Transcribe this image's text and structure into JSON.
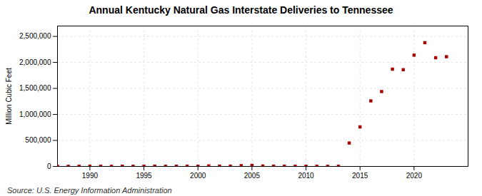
{
  "chart_data": {
    "type": "scatter",
    "title": "Annual Kentucky Natural Gas Interstate Deliveries to Tennessee",
    "ylabel": "Million Cubic Feet",
    "source": "Source: U.S. Energy Information Administration",
    "x": [
      1987,
      1988,
      1989,
      1990,
      1991,
      1992,
      1993,
      1994,
      1995,
      1996,
      1997,
      1998,
      1999,
      2000,
      2001,
      2002,
      2003,
      2004,
      2005,
      2006,
      2007,
      2008,
      2009,
      2010,
      2011,
      2012,
      2013,
      2014,
      2015,
      2016,
      2017,
      2018,
      2019,
      2020,
      2021,
      2022,
      2023
    ],
    "values": [
      2000,
      1500,
      3000,
      5000,
      3000,
      2000,
      4000,
      3000,
      4000,
      5000,
      3000,
      4000,
      5000,
      4000,
      10000,
      5000,
      5000,
      15000,
      20000,
      8000,
      5000,
      4000,
      3000,
      4000,
      3000,
      2000,
      3000,
      450000,
      760000,
      1260000,
      1440000,
      1870000,
      1860000,
      2140000,
      2380000,
      2090000,
      2110000
    ],
    "color": "#aa0000",
    "marker": "square",
    "xlim": [
      1987,
      2025
    ],
    "ylim": [
      0,
      2700000
    ],
    "xticks": [
      1990,
      1995,
      2000,
      2005,
      2010,
      2015,
      2020
    ],
    "yticks": [
      0,
      {
        "value": 500000,
        "label": "500,000"
      },
      {
        "value": 1000000,
        "label": "1,000,000"
      },
      {
        "value": 1500000,
        "label": "1,500,000"
      },
      {
        "value": 2000000,
        "label": "2,000,000"
      },
      {
        "value": 2500000,
        "label": "2,500,000"
      }
    ],
    "grid": true
  }
}
